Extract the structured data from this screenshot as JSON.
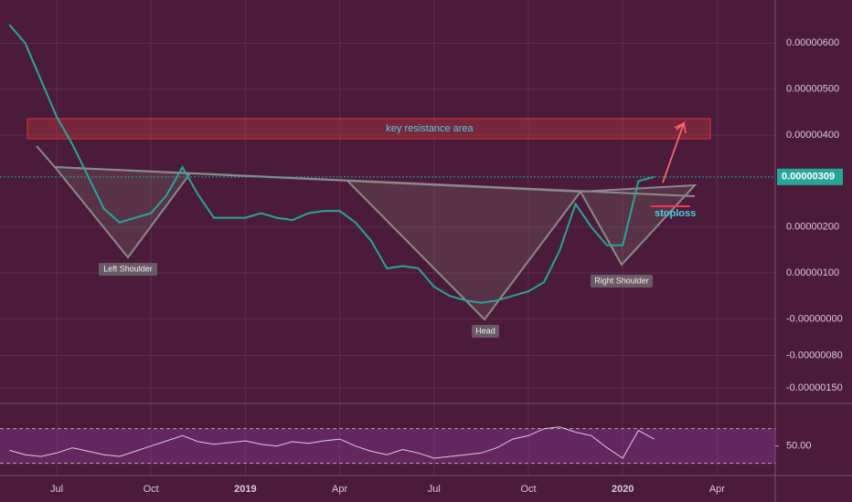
{
  "chart_data": {
    "type": "line",
    "categories": [
      null,
      null,
      null,
      "Jul",
      null,
      null,
      null,
      null,
      null,
      "Oct",
      null,
      null,
      null,
      null,
      null,
      "2019",
      null,
      null,
      null,
      null,
      null,
      "Apr",
      null,
      null,
      null,
      null,
      null,
      "Jul",
      null,
      null,
      null,
      null,
      null,
      "Oct",
      null,
      null,
      null,
      null,
      null,
      "2020",
      null,
      null,
      null,
      null,
      null,
      "Apr",
      null,
      null,
      null
    ],
    "values": [
      6.4e-06,
      6e-06,
      5.2e-06,
      4.4e-06,
      3.8e-06,
      3.1e-06,
      2.4e-06,
      2.1e-06,
      2.2e-06,
      2.3e-06,
      2.7e-06,
      3.3e-06,
      2.7e-06,
      2.2e-06,
      2.2e-06,
      2.2e-06,
      2.3e-06,
      2.2e-06,
      2.15e-06,
      2.3e-06,
      2.35e-06,
      2.35e-06,
      2.1e-06,
      1.7e-06,
      1.1e-06,
      1.15e-06,
      1.1e-06,
      7e-07,
      5e-07,
      4e-07,
      3.5e-07,
      4e-07,
      5e-07,
      6e-07,
      8e-07,
      1.5e-06,
      2.5e-06,
      2e-06,
      1.6e-06,
      1.6e-06,
      3e-06,
      3.09e-06,
      null,
      null,
      null,
      null,
      null,
      null,
      null
    ],
    "color": "#26a69a",
    "ylim": [
      -1.8e-06,
      6.94e-06
    ],
    "yticks": [
      {
        "value": 6e-06,
        "label": "0.00000600"
      },
      {
        "value": 5e-06,
        "label": "0.00000500"
      },
      {
        "value": 4e-06,
        "label": "0.00000400"
      },
      {
        "value": 2e-06,
        "label": "0.00000200"
      },
      {
        "value": 1e-06,
        "label": "0.00000100"
      },
      {
        "value": 0,
        "label": "-0.00000000"
      },
      {
        "value": -8e-07,
        "label": "-0.00000080"
      },
      {
        "value": -1.5e-06,
        "label": "-0.00000150"
      }
    ],
    "last_price": {
      "value": 3.09e-06,
      "label": "0.00000309"
    },
    "grid": true,
    "annotations": {
      "resistance": "key resistance area",
      "left_shoulder": "Left Shoulder",
      "head": "Head",
      "right_shoulder": "Right Shoulder",
      "stoploss": "stoploss"
    },
    "rsi": {
      "values": [
        45,
        40,
        38,
        42,
        48,
        44,
        40,
        38,
        44,
        50,
        56,
        62,
        55,
        52,
        54,
        56,
        52,
        50,
        55,
        53,
        56,
        58,
        50,
        44,
        40,
        46,
        42,
        36,
        38,
        40,
        42,
        48,
        58,
        62,
        70,
        72,
        66,
        62,
        48,
        36,
        68,
        58,
        null,
        null,
        null,
        null,
        null,
        null,
        null
      ],
      "color": "#d8d0dc",
      "ylim": [
        17,
        96
      ],
      "yticks": [
        {
          "value": 50,
          "label": "50.00"
        }
      ],
      "bands": [
        70,
        30
      ]
    }
  }
}
